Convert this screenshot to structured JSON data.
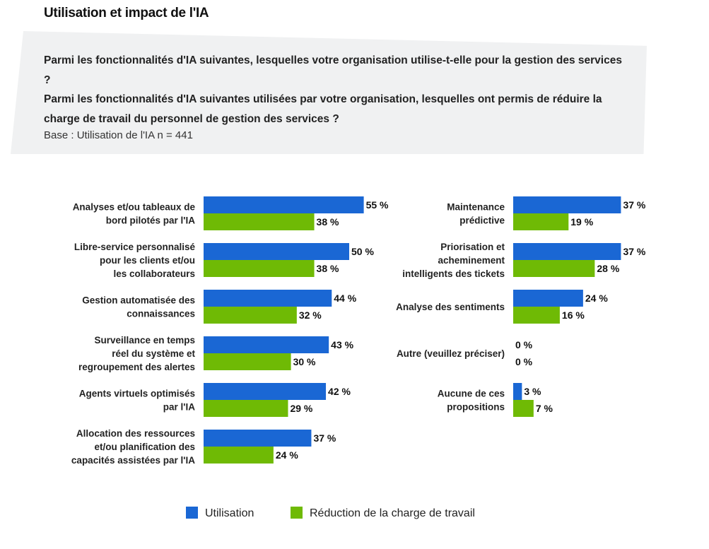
{
  "header": {
    "title": "Utilisation et impact de l'IA",
    "question_1": "Parmi les fonctionnalités d'IA suivantes, lesquelles votre organisation utilise-t-elle pour la gestion des services ?",
    "question_2": "Parmi les fonctionnalités d'IA suivantes utilisées par votre organisation, lesquelles ont permis de réduire la charge de travail du personnel de gestion des services ?",
    "base": "Base : Utilisation de l'IA n = 441"
  },
  "colors": {
    "utilisation": "#1a67d4",
    "reduction": "#6fba05"
  },
  "chart_data": {
    "type": "bar",
    "orientation": "horizontal",
    "unit": "%",
    "value_suffix": " %",
    "series": [
      {
        "name": "Utilisation"
      },
      {
        "name": "Réduction de la charge de travail"
      }
    ],
    "panels": [
      {
        "position": "left",
        "categories": [
          {
            "lines": [
              "Analyses et/ou tableaux de",
              "bord pilotés par l'IA"
            ],
            "utilisation": 55,
            "reduction": 38
          },
          {
            "lines": [
              "Libre-service personnalisé",
              "pour les clients et/ou",
              "les collaborateurs"
            ],
            "utilisation": 50,
            "reduction": 38
          },
          {
            "lines": [
              "Gestion automatisée des",
              "connaissances"
            ],
            "utilisation": 44,
            "reduction": 32
          },
          {
            "lines": [
              "Surveillance en temps",
              "réel du système et",
              "regroupement des alertes"
            ],
            "utilisation": 43,
            "reduction": 30
          },
          {
            "lines": [
              "Agents virtuels optimisés",
              "par l'IA"
            ],
            "utilisation": 42,
            "reduction": 29
          },
          {
            "lines": [
              "Allocation des ressources",
              "et/ou planification des",
              "capacités assistées par l'IA"
            ],
            "utilisation": 37,
            "reduction": 24
          }
        ]
      },
      {
        "position": "right",
        "categories": [
          {
            "lines": [
              "Maintenance",
              "prédictive"
            ],
            "utilisation": 37,
            "reduction": 19
          },
          {
            "lines": [
              "Priorisation et",
              "acheminement",
              "intelligents des tickets"
            ],
            "utilisation": 37,
            "reduction": 28
          },
          {
            "lines": [
              "Analyse des sentiments"
            ],
            "utilisation": 24,
            "reduction": 16
          },
          {
            "lines": [
              "Autre (veuillez préciser)"
            ],
            "utilisation": 0,
            "reduction": 0
          },
          {
            "lines": [
              "Aucune de ces",
              "propositions"
            ],
            "utilisation": 3,
            "reduction": 7
          }
        ]
      }
    ],
    "legend": {
      "placement": "bottom-center",
      "items": [
        {
          "label": "Utilisation",
          "series": "utilisation"
        },
        {
          "label": "Réduction de la charge de travail",
          "series": "reduction"
        }
      ]
    }
  }
}
